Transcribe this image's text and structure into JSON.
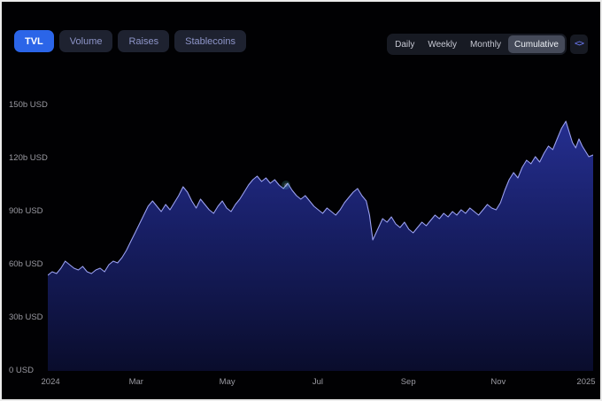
{
  "header": {
    "metric_tabs": [
      {
        "label": "TVL",
        "active": true
      },
      {
        "label": "Volume",
        "active": false
      },
      {
        "label": "Raises",
        "active": false
      },
      {
        "label": "Stablecoins",
        "active": false
      }
    ],
    "interval_tabs": [
      {
        "label": "Daily",
        "selected": false
      },
      {
        "label": "Weekly",
        "selected": false
      },
      {
        "label": "Monthly",
        "selected": false
      },
      {
        "label": "Cumulative",
        "selected": true
      }
    ],
    "embed_button": {
      "label": "<>"
    }
  },
  "colors": {
    "background": "#010103",
    "accent_blue": "#2b65e8",
    "line": "#9aa0f0",
    "area_top": "#2b36a8",
    "area_bottom": "#0a0d2e",
    "axis_text": "#9a9aa2",
    "inactive_tab_bg": "#1e2230",
    "selected_interval_bg": "#454a59"
  },
  "chart_data": {
    "type": "area",
    "title": "",
    "xlabel": "",
    "ylabel": "",
    "y_unit": "b USD",
    "ylim": [
      0,
      150
    ],
    "grid": false,
    "legend": "none",
    "y_ticks": [
      {
        "value": 150,
        "label": "150b USD"
      },
      {
        "value": 120,
        "label": "120b USD"
      },
      {
        "value": 90,
        "label": "90b USD"
      },
      {
        "value": 60,
        "label": "60b USD"
      },
      {
        "value": 30,
        "label": "30b USD"
      },
      {
        "value": 0,
        "label": "0 USD"
      }
    ],
    "x_ticks": [
      {
        "pos": 0.005,
        "label": "2024"
      },
      {
        "pos": 0.162,
        "label": "Mar"
      },
      {
        "pos": 0.329,
        "label": "May"
      },
      {
        "pos": 0.495,
        "label": "Jul"
      },
      {
        "pos": 0.661,
        "label": "Sep"
      },
      {
        "pos": 0.826,
        "label": "Nov"
      },
      {
        "pos": 0.987,
        "label": "2025"
      }
    ],
    "series": [
      {
        "name": "TVL",
        "points": [
          [
            0.0,
            54
          ],
          [
            0.008,
            56
          ],
          [
            0.016,
            55
          ],
          [
            0.024,
            58
          ],
          [
            0.032,
            62
          ],
          [
            0.04,
            60
          ],
          [
            0.048,
            58
          ],
          [
            0.056,
            57
          ],
          [
            0.064,
            59
          ],
          [
            0.072,
            56
          ],
          [
            0.08,
            55
          ],
          [
            0.088,
            57
          ],
          [
            0.096,
            58
          ],
          [
            0.104,
            56
          ],
          [
            0.112,
            60
          ],
          [
            0.12,
            62
          ],
          [
            0.128,
            61
          ],
          [
            0.136,
            64
          ],
          [
            0.144,
            68
          ],
          [
            0.152,
            73
          ],
          [
            0.16,
            78
          ],
          [
            0.168,
            83
          ],
          [
            0.176,
            88
          ],
          [
            0.184,
            93
          ],
          [
            0.192,
            96
          ],
          [
            0.2,
            93
          ],
          [
            0.208,
            90
          ],
          [
            0.216,
            94
          ],
          [
            0.224,
            91
          ],
          [
            0.232,
            95
          ],
          [
            0.24,
            99
          ],
          [
            0.248,
            104
          ],
          [
            0.256,
            101
          ],
          [
            0.264,
            96
          ],
          [
            0.272,
            92
          ],
          [
            0.28,
            97
          ],
          [
            0.288,
            94
          ],
          [
            0.296,
            91
          ],
          [
            0.304,
            89
          ],
          [
            0.312,
            93
          ],
          [
            0.32,
            96
          ],
          [
            0.328,
            92
          ],
          [
            0.336,
            90
          ],
          [
            0.344,
            94
          ],
          [
            0.352,
            97
          ],
          [
            0.36,
            101
          ],
          [
            0.368,
            105
          ],
          [
            0.376,
            108
          ],
          [
            0.384,
            110
          ],
          [
            0.392,
            107
          ],
          [
            0.4,
            109
          ],
          [
            0.408,
            106
          ],
          [
            0.416,
            108
          ],
          [
            0.424,
            105
          ],
          [
            0.432,
            103
          ],
          [
            0.44,
            106
          ],
          [
            0.448,
            102
          ],
          [
            0.456,
            99
          ],
          [
            0.464,
            97
          ],
          [
            0.472,
            99
          ],
          [
            0.48,
            96
          ],
          [
            0.488,
            93
          ],
          [
            0.496,
            91
          ],
          [
            0.504,
            89
          ],
          [
            0.512,
            92
          ],
          [
            0.52,
            90
          ],
          [
            0.528,
            88
          ],
          [
            0.536,
            91
          ],
          [
            0.544,
            95
          ],
          [
            0.552,
            98
          ],
          [
            0.56,
            101
          ],
          [
            0.568,
            103
          ],
          [
            0.576,
            99
          ],
          [
            0.584,
            96
          ],
          [
            0.59,
            88
          ],
          [
            0.596,
            74
          ],
          [
            0.602,
            78
          ],
          [
            0.608,
            82
          ],
          [
            0.614,
            86
          ],
          [
            0.622,
            84
          ],
          [
            0.63,
            87
          ],
          [
            0.638,
            83
          ],
          [
            0.646,
            81
          ],
          [
            0.654,
            84
          ],
          [
            0.662,
            80
          ],
          [
            0.67,
            78
          ],
          [
            0.678,
            81
          ],
          [
            0.686,
            84
          ],
          [
            0.694,
            82
          ],
          [
            0.702,
            85
          ],
          [
            0.71,
            88
          ],
          [
            0.718,
            86
          ],
          [
            0.726,
            89
          ],
          [
            0.734,
            87
          ],
          [
            0.742,
            90
          ],
          [
            0.75,
            88
          ],
          [
            0.758,
            91
          ],
          [
            0.766,
            89
          ],
          [
            0.774,
            92
          ],
          [
            0.782,
            90
          ],
          [
            0.79,
            88
          ],
          [
            0.798,
            91
          ],
          [
            0.806,
            94
          ],
          [
            0.814,
            92
          ],
          [
            0.822,
            91
          ],
          [
            0.83,
            95
          ],
          [
            0.838,
            102
          ],
          [
            0.846,
            108
          ],
          [
            0.854,
            112
          ],
          [
            0.862,
            109
          ],
          [
            0.87,
            115
          ],
          [
            0.878,
            119
          ],
          [
            0.886,
            117
          ],
          [
            0.894,
            121
          ],
          [
            0.902,
            118
          ],
          [
            0.91,
            123
          ],
          [
            0.918,
            127
          ],
          [
            0.926,
            125
          ],
          [
            0.934,
            131
          ],
          [
            0.942,
            137
          ],
          [
            0.95,
            141
          ],
          [
            0.956,
            135
          ],
          [
            0.962,
            129
          ],
          [
            0.968,
            126
          ],
          [
            0.974,
            131
          ],
          [
            0.98,
            127
          ],
          [
            0.986,
            124
          ],
          [
            0.992,
            121
          ],
          [
            1.0,
            122
          ]
        ]
      }
    ]
  }
}
